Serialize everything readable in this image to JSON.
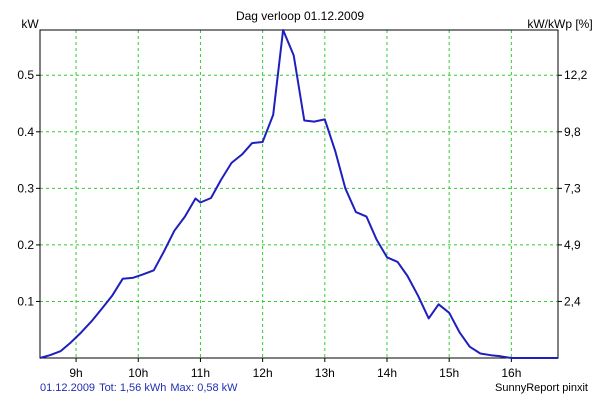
{
  "chart_data": {
    "type": "line",
    "title": "Dag  verloop 01.12.2009",
    "ylabel_left": "kW",
    "ylabel_right": "kW/kWp [%]",
    "x_ticks": [
      {
        "value": 9,
        "label": "9h"
      },
      {
        "value": 10,
        "label": "10h"
      },
      {
        "value": 11,
        "label": "11h"
      },
      {
        "value": 12,
        "label": "12h"
      },
      {
        "value": 13,
        "label": "13h"
      },
      {
        "value": 14,
        "label": "14h"
      },
      {
        "value": 15,
        "label": "15h"
      },
      {
        "value": 16,
        "label": "16h"
      }
    ],
    "y_ticks_left": [
      {
        "value": 0.1,
        "label": "0.1"
      },
      {
        "value": 0.2,
        "label": "0.2"
      },
      {
        "value": 0.3,
        "label": "0.3"
      },
      {
        "value": 0.4,
        "label": "0.4"
      },
      {
        "value": 0.5,
        "label": "0.5"
      }
    ],
    "y_ticks_right": [
      {
        "value": 0.1,
        "label": "2,4"
      },
      {
        "value": 0.2,
        "label": "4,9"
      },
      {
        "value": 0.3,
        "label": "7,3"
      },
      {
        "value": 0.4,
        "label": "9,8"
      },
      {
        "value": 0.5,
        "label": "12,2"
      }
    ],
    "xlim": [
      8.42,
      16.75
    ],
    "ylim": [
      0,
      0.58
    ],
    "grid": true,
    "line_color": "#1f1fbf",
    "grid_color": "#33cc33",
    "series": [
      {
        "x": [
          8.42,
          8.58,
          8.75,
          8.92,
          9.08,
          9.25,
          9.42,
          9.58,
          9.75,
          9.92,
          10.08,
          10.25,
          10.42,
          10.58,
          10.75,
          10.92,
          11.0,
          11.17,
          11.33,
          11.5,
          11.67,
          11.83,
          12.0,
          12.17,
          12.33,
          12.5,
          12.67,
          12.83,
          13.0,
          13.17,
          13.33,
          13.5,
          13.67,
          13.83,
          14.0,
          14.17,
          14.33,
          14.5,
          14.67,
          14.83,
          15.0,
          15.17,
          15.33,
          15.5,
          15.67,
          15.83,
          16.0,
          16.25,
          16.5,
          16.75
        ],
        "y": [
          0.0,
          0.005,
          0.012,
          0.028,
          0.045,
          0.065,
          0.088,
          0.11,
          0.14,
          0.142,
          0.148,
          0.155,
          0.19,
          0.225,
          0.25,
          0.282,
          0.275,
          0.283,
          0.315,
          0.345,
          0.36,
          0.38,
          0.382,
          0.43,
          0.58,
          0.535,
          0.42,
          0.418,
          0.422,
          0.365,
          0.3,
          0.258,
          0.25,
          0.21,
          0.178,
          0.17,
          0.145,
          0.11,
          0.07,
          0.095,
          0.08,
          0.045,
          0.02,
          0.008,
          0.005,
          0.003,
          0.0,
          0.0,
          0.0,
          0.0
        ]
      }
    ]
  },
  "footer": {
    "date": "01.12.2009",
    "total": "Tot: 1,56 kWh",
    "max": "Max: 0,58 kW",
    "brand": "SunnyReport pinxit"
  }
}
